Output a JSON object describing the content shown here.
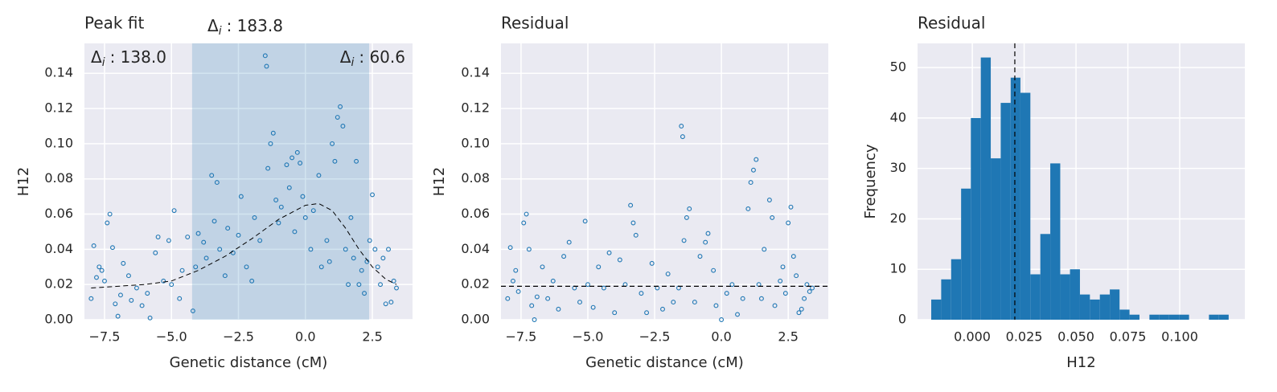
{
  "chart_data": [
    {
      "type": "scatter",
      "title": "Peak fit",
      "x_label": "Genetic distance (cM)",
      "y_label": "H12",
      "xlim": [
        -8.25,
        4.0
      ],
      "ylim": [
        0,
        0.157
      ],
      "xticks": [
        {
          "value": -7.5,
          "label": "−7.5"
        },
        {
          "value": -5,
          "label": "−5.0"
        },
        {
          "value": -2.5,
          "label": "−2.5"
        },
        {
          "value": 0,
          "label": "0.0"
        },
        2.5
      ],
      "yticks": [
        {
          "value": 0,
          "label": "0.00"
        },
        0.02,
        0.04,
        0.06,
        0.08,
        {
          "value": 0.1,
          "label": "0.10"
        },
        0.12,
        0.14
      ],
      "grid": true,
      "span": {
        "xlim": [
          -4.23,
          2.38
        ],
        "color": "#1f77b4",
        "alpha": 0.2
      },
      "annotations": [
        {
          "label": "Δ",
          "subscript": "i",
          "text": ": 183.8"
        },
        {
          "label": "Δ",
          "subscript": "i",
          "text": ": 138.0"
        },
        {
          "label": "Δ",
          "subscript": "i",
          "text": ": 60.6"
        }
      ],
      "fit": {
        "color": "#000000",
        "dashed": true,
        "x": [
          -8,
          -7,
          -6,
          -5,
          -4,
          -3,
          -2,
          -1,
          0,
          0.5,
          1,
          1.5,
          2,
          2.5,
          3,
          3.4
        ],
        "y": [
          0.018,
          0.019,
          0.02,
          0.022,
          0.028,
          0.036,
          0.046,
          0.057,
          0.065,
          0.066,
          0.062,
          0.052,
          0.04,
          0.03,
          0.023,
          0.02
        ]
      },
      "series": [
        {
          "color": "#1f77b4",
          "x": [
            -8.0,
            -7.9,
            -7.8,
            -7.7,
            -7.6,
            -7.5,
            -7.4,
            -7.3,
            -7.2,
            -7.1,
            -7.0,
            -6.9,
            -6.8,
            -6.6,
            -6.5,
            -6.3,
            -6.1,
            -5.9,
            -5.8,
            -5.6,
            -5.5,
            -5.3,
            -5.1,
            -5.0,
            -4.9,
            -4.7,
            -4.6,
            -4.4,
            -4.2,
            -4.1,
            -4.0,
            -3.8,
            -3.7,
            -3.5,
            -3.4,
            -3.3,
            -3.2,
            -3.0,
            -2.9,
            -2.7,
            -2.5,
            -2.4,
            -2.2,
            -2.0,
            -1.9,
            -1.7,
            -1.5,
            -1.45,
            -1.4,
            -1.3,
            -1.2,
            -1.1,
            -1.0,
            -0.9,
            -0.7,
            -0.6,
            -0.5,
            -0.4,
            -0.3,
            -0.2,
            -0.1,
            0.0,
            0.2,
            0.3,
            0.5,
            0.6,
            0.8,
            0.9,
            1.0,
            1.1,
            1.2,
            1.3,
            1.4,
            1.5,
            1.6,
            1.7,
            1.8,
            1.9,
            2.0,
            2.1,
            2.2,
            2.3,
            2.4,
            2.5,
            2.6,
            2.7,
            2.8,
            2.9,
            3.0,
            3.1,
            3.2,
            3.3,
            3.4
          ],
          "y": [
            0.012,
            0.042,
            0.024,
            0.03,
            0.028,
            0.022,
            0.055,
            0.06,
            0.041,
            0.009,
            0.002,
            0.014,
            0.032,
            0.025,
            0.011,
            0.018,
            0.008,
            0.015,
            0.001,
            0.038,
            0.047,
            0.022,
            0.045,
            0.02,
            0.062,
            0.012,
            0.028,
            0.047,
            0.005,
            0.03,
            0.049,
            0.044,
            0.035,
            0.082,
            0.056,
            0.078,
            0.04,
            0.025,
            0.052,
            0.038,
            0.048,
            0.07,
            0.03,
            0.022,
            0.058,
            0.045,
            0.15,
            0.144,
            0.086,
            0.1,
            0.106,
            0.068,
            0.055,
            0.064,
            0.088,
            0.075,
            0.092,
            0.05,
            0.095,
            0.089,
            0.07,
            0.058,
            0.04,
            0.062,
            0.082,
            0.03,
            0.045,
            0.033,
            0.1,
            0.09,
            0.115,
            0.121,
            0.11,
            0.04,
            0.02,
            0.058,
            0.035,
            0.09,
            0.02,
            0.028,
            0.015,
            0.033,
            0.045,
            0.071,
            0.04,
            0.03,
            0.02,
            0.035,
            0.009,
            0.04,
            0.01,
            0.022,
            0.018
          ]
        }
      ]
    },
    {
      "type": "scatter",
      "title": "Residual",
      "x_label": "Genetic distance (cM)",
      "y_label": "H12",
      "xlim": [
        -8.25,
        4.0
      ],
      "ylim": [
        0,
        0.157
      ],
      "xticks": [
        {
          "value": -7.5,
          "label": "−7.5"
        },
        {
          "value": -5,
          "label": "−5.0"
        },
        {
          "value": -2.5,
          "label": "−2.5"
        },
        {
          "value": 0,
          "label": "0.0"
        },
        2.5
      ],
      "yticks": [
        {
          "value": 0,
          "label": "0.00"
        },
        0.02,
        0.04,
        0.06,
        0.08,
        {
          "value": 0.1,
          "label": "0.10"
        },
        0.12,
        0.14
      ],
      "grid": true,
      "hline": {
        "y": 0.019,
        "color": "#000000",
        "dashed": true
      },
      "series": [
        {
          "color": "#1f77b4",
          "x": [
            -8.0,
            -7.9,
            -7.8,
            -7.7,
            -7.6,
            -7.4,
            -7.3,
            -7.2,
            -7.1,
            -7.0,
            -6.9,
            -6.7,
            -6.5,
            -6.3,
            -6.1,
            -5.9,
            -5.7,
            -5.5,
            -5.3,
            -5.1,
            -5.0,
            -4.8,
            -4.6,
            -4.4,
            -4.2,
            -4.0,
            -3.8,
            -3.6,
            -3.4,
            -3.3,
            -3.2,
            -3.0,
            -2.8,
            -2.6,
            -2.4,
            -2.2,
            -2.0,
            -1.8,
            -1.6,
            -1.5,
            -1.45,
            -1.4,
            -1.3,
            -1.2,
            -1.0,
            -0.8,
            -0.6,
            -0.5,
            -0.3,
            -0.2,
            0.0,
            0.2,
            0.4,
            0.6,
            0.8,
            1.0,
            1.1,
            1.2,
            1.3,
            1.4,
            1.5,
            1.6,
            1.8,
            1.9,
            2.0,
            2.2,
            2.3,
            2.4,
            2.5,
            2.6,
            2.7,
            2.8,
            2.9,
            3.0,
            3.1,
            3.2,
            3.3,
            3.4
          ],
          "y": [
            0.012,
            0.041,
            0.022,
            0.028,
            0.016,
            0.055,
            0.06,
            0.04,
            0.008,
            0.0,
            0.013,
            0.03,
            0.012,
            0.022,
            0.006,
            0.036,
            0.044,
            0.018,
            0.01,
            0.056,
            0.02,
            0.007,
            0.03,
            0.018,
            0.038,
            0.004,
            0.034,
            0.02,
            0.065,
            0.055,
            0.048,
            0.015,
            0.004,
            0.032,
            0.018,
            0.006,
            0.026,
            0.01,
            0.018,
            0.11,
            0.104,
            0.045,
            0.058,
            0.063,
            0.01,
            0.036,
            0.044,
            0.049,
            0.028,
            0.008,
            0.0,
            0.015,
            0.02,
            0.003,
            0.012,
            0.063,
            0.078,
            0.085,
            0.091,
            0.02,
            0.012,
            0.04,
            0.068,
            0.058,
            0.008,
            0.022,
            0.03,
            0.015,
            0.055,
            0.064,
            0.036,
            0.025,
            0.004,
            0.006,
            0.012,
            0.02,
            0.016,
            0.018
          ]
        }
      ]
    },
    {
      "type": "histogram",
      "title": "Residual",
      "x_label": "H12",
      "y_label": "Frequency",
      "xlim": [
        -0.0264,
        0.1314
      ],
      "ylim": [
        0,
        54.8
      ],
      "xticks": [
        {
          "value": 0,
          "label": "0.000"
        },
        {
          "value": 0.025,
          "label": "0.025"
        },
        {
          "value": 0.05,
          "label": "0.050"
        },
        {
          "value": 0.075,
          "label": "0.075"
        },
        {
          "value": 0.1,
          "label": "0.100"
        }
      ],
      "yticks": [
        0,
        10,
        20,
        30,
        40,
        50
      ],
      "grid": true,
      "color": "#1f77b4",
      "vline": {
        "x": 0.0205,
        "color": "#000000",
        "dashed": true
      },
      "bins": [
        -0.0198,
        -0.015,
        -0.0102,
        -0.0054,
        -0.0007,
        0.0041,
        0.0089,
        0.0137,
        0.0185,
        0.0232,
        0.028,
        0.0328,
        0.0376,
        0.0424,
        0.0471,
        0.0519,
        0.0567,
        0.0615,
        0.0663,
        0.071,
        0.0758,
        0.0806,
        0.0854,
        0.0902,
        0.0949,
        0.0997,
        0.1045,
        0.1093,
        0.1141,
        0.1189,
        0.1236
      ],
      "values": [
        4,
        8,
        12,
        26,
        40,
        52,
        32,
        43,
        48,
        45,
        9,
        17,
        31,
        9,
        10,
        5,
        4,
        5,
        6,
        2,
        1,
        0,
        1,
        1,
        1,
        1,
        0,
        0,
        1,
        1
      ]
    }
  ]
}
